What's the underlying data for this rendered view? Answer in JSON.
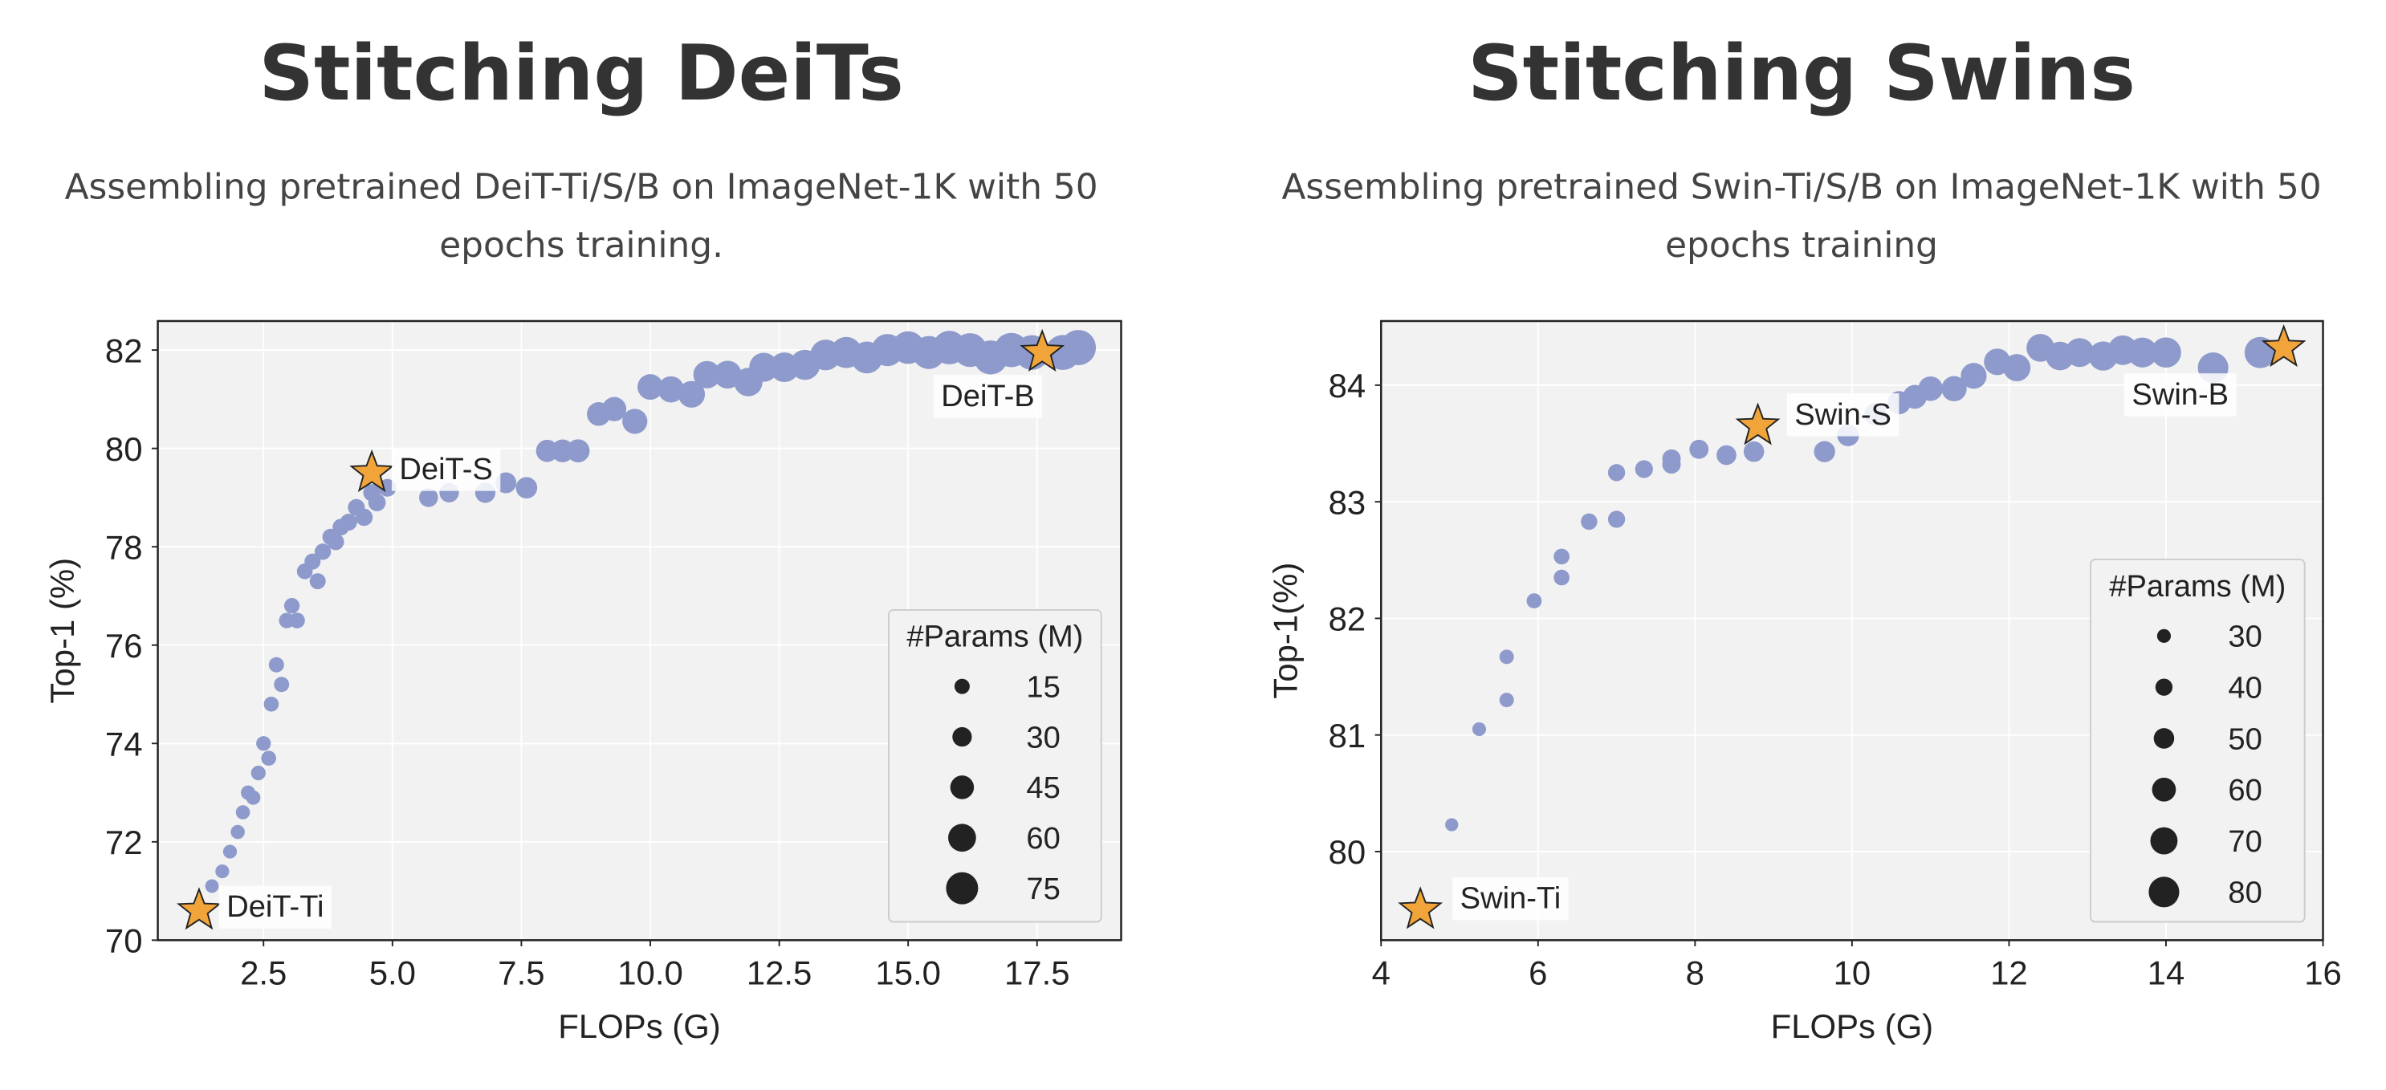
{
  "chart_data": [
    {
      "type": "scatter",
      "title": "Stitching DeiTs",
      "subtitle": "Assembling pretrained DeiT-Ti/S/B on ImageNet-1K with 50 epochs training.",
      "x_label": "FLOPs (G)",
      "y_label": "Top-1 (%)",
      "color": "#8d9acb",
      "star_color": "#f0a43a",
      "grid": true,
      "xlim": [
        0.45,
        19.13
      ],
      "ylim": [
        70,
        82.59
      ],
      "xticks": [
        2.5,
        {
          "value": 5,
          "label": "5.0"
        },
        7.5,
        {
          "value": 10,
          "label": "10.0"
        },
        12.5,
        {
          "value": 15,
          "label": "15.0"
        },
        17.5
      ],
      "yticks": [
        70,
        72,
        74,
        76,
        78,
        80,
        82
      ],
      "x": [
        1.5,
        1.7,
        1.85,
        2.0,
        2.1,
        2.2,
        2.3,
        2.4,
        2.5,
        2.6,
        2.65,
        2.75,
        2.85,
        2.95,
        3.05,
        3.15,
        3.3,
        3.45,
        3.55,
        3.65,
        3.8,
        3.9,
        4.0,
        4.15,
        4.3,
        4.45,
        4.6,
        4.7,
        4.9,
        5.7,
        6.1,
        6.8,
        7.2,
        7.6,
        8.0,
        8.3,
        8.6,
        9.0,
        9.3,
        9.7,
        10.0,
        10.4,
        10.8,
        11.1,
        11.5,
        11.9,
        12.2,
        12.6,
        13.0,
        13.4,
        13.8,
        14.2,
        14.6,
        15.0,
        15.4,
        15.8,
        16.2,
        16.6,
        17.0,
        17.4,
        18.0,
        18.3
      ],
      "y": [
        71.1,
        71.4,
        71.8,
        72.2,
        72.6,
        73.0,
        72.9,
        73.4,
        74.0,
        73.7,
        74.8,
        75.6,
        75.2,
        76.5,
        76.8,
        76.5,
        77.5,
        77.7,
        77.3,
        77.9,
        78.2,
        78.1,
        78.4,
        78.5,
        78.8,
        78.6,
        79.1,
        78.9,
        79.2,
        79.0,
        79.1,
        79.1,
        79.3,
        79.2,
        79.95,
        79.95,
        79.95,
        80.7,
        80.8,
        80.55,
        81.25,
        81.2,
        81.1,
        81.5,
        81.5,
        81.35,
        81.65,
        81.65,
        81.7,
        81.9,
        81.95,
        81.85,
        82.0,
        82.05,
        81.95,
        82.05,
        82.0,
        81.85,
        82.0,
        81.95,
        81.95,
        82.05
      ],
      "sizes": [
        9,
        10,
        10,
        11,
        11,
        12,
        12,
        13,
        13,
        14,
        14,
        15,
        15,
        16,
        16,
        17,
        17,
        18,
        18,
        19,
        19,
        20,
        20,
        21,
        21,
        22,
        22,
        23,
        24,
        28,
        30,
        33,
        35,
        37,
        40,
        42,
        43,
        45,
        47,
        50,
        52,
        54,
        56,
        58,
        60,
        62,
        64,
        66,
        68,
        70,
        72,
        74,
        75,
        77,
        78,
        80,
        81,
        82,
        83,
        84,
        85,
        86
      ],
      "legend_title": "#Params (M)",
      "legend_sizes": [
        15,
        30,
        45,
        60,
        75
      ],
      "annotations": [
        {
          "text": "DeiT-Ti",
          "x": 1.25,
          "y": 70.6
        },
        {
          "text": "DeiT-S",
          "x": 4.6,
          "y": 79.5
        },
        {
          "text": "DeiT-B",
          "x": 17.6,
          "y": 81.95
        }
      ]
    },
    {
      "type": "scatter",
      "title": "Stitching Swins",
      "subtitle": "Assembling pretrained Swin-Ti/S/B on ImageNet-1K with 50 epochs training",
      "x_label": "FLOPs (G)",
      "y_label": "Top-1(%)",
      "color": "#8d9acb",
      "star_color": "#f0a43a",
      "grid": true,
      "xlim": [
        4,
        16
      ],
      "ylim": [
        79.24,
        84.55
      ],
      "xticks": [
        4,
        6,
        8,
        10,
        12,
        14,
        16
      ],
      "yticks": [
        80,
        81,
        82,
        83,
        84
      ],
      "x": [
        4.9,
        5.25,
        5.6,
        5.6,
        5.95,
        6.3,
        6.3,
        6.65,
        7.0,
        7.0,
        7.35,
        7.7,
        7.7,
        8.05,
        8.4,
        8.75,
        9.65,
        9.95,
        10.3,
        10.6,
        10.8,
        11.0,
        11.3,
        11.55,
        11.85,
        12.1,
        12.4,
        12.65,
        12.9,
        13.2,
        13.45,
        13.7,
        14.0,
        14.6,
        15.2
      ],
      "y": [
        80.23,
        81.05,
        81.3,
        81.67,
        82.15,
        82.35,
        82.53,
        82.83,
        82.85,
        83.25,
        83.28,
        83.32,
        83.37,
        83.45,
        83.4,
        83.43,
        83.43,
        83.57,
        83.75,
        83.85,
        83.9,
        83.97,
        83.97,
        84.08,
        84.2,
        84.15,
        84.32,
        84.25,
        84.28,
        84.25,
        84.3,
        84.28,
        84.28,
        84.15,
        84.28
      ],
      "sizes": [
        28,
        30,
        32,
        32,
        34,
        36,
        36,
        38,
        40,
        40,
        42,
        44,
        44,
        46,
        48,
        50,
        52,
        54,
        56,
        58,
        60,
        62,
        64,
        66,
        68,
        70,
        72,
        74,
        75,
        76,
        77,
        78,
        79,
        80,
        82
      ],
      "legend_title": "#Params (M)",
      "legend_sizes": [
        30,
        40,
        50,
        60,
        70,
        80
      ],
      "annotations": [
        {
          "text": "Swin-Ti",
          "x": 4.5,
          "y": 79.5
        },
        {
          "text": "Swin-S",
          "x": 8.8,
          "y": 83.65
        },
        {
          "text": "Swin-B",
          "x": 15.5,
          "y": 84.32
        }
      ]
    }
  ]
}
